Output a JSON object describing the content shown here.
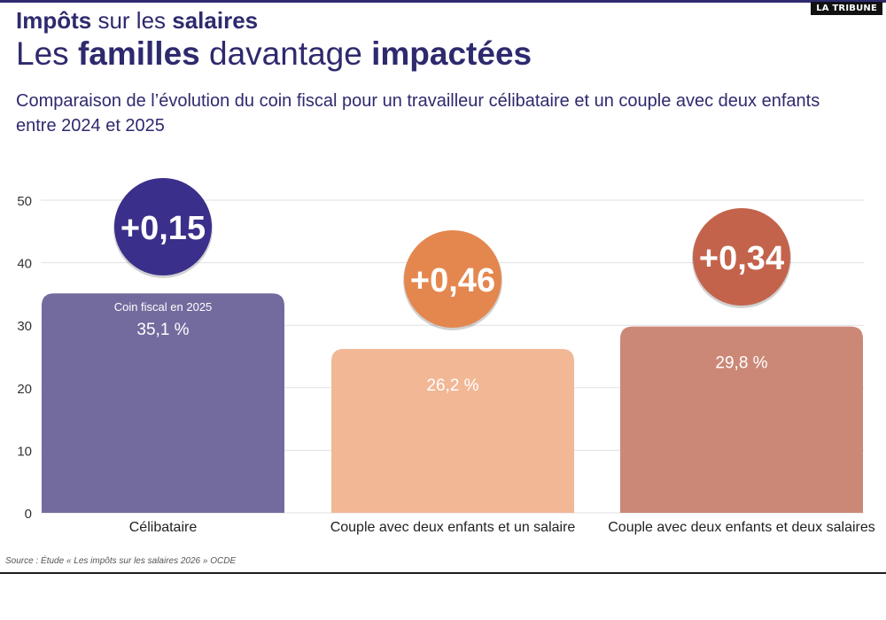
{
  "brand": "LA TRIBUNE",
  "title_line1": {
    "part1": "Impôts",
    "part2": " sur les ",
    "part3": "salaires"
  },
  "title_line2": {
    "part1": "Les ",
    "part2": "familles",
    "part3": " davantage ",
    "part4": "impactées"
  },
  "subtitle": "Comparaison de l’évolution du coin fiscal pour un travailleur célibataire et un couple avec deux enfants entre 2024 et 2025",
  "bar_annotation": "Coin fiscal en 2025",
  "source": "Source : Étude « Les impôts sur les salaires 2026 » OCDE",
  "colors": {
    "bars": [
      "#736b9e",
      "#f2b795",
      "#cb8877"
    ],
    "bubbles": [
      "#3a2f8a",
      "#e4874f",
      "#c4634c"
    ]
  },
  "chart_data": {
    "type": "bar",
    "categories": [
      "Célibataire",
      "Couple avec deux enfants et un salaire",
      "Couple avec deux enfants et deux salaires"
    ],
    "values": [
      35.1,
      26.2,
      29.8
    ],
    "value_labels": [
      "35,1 %",
      "26,2 %",
      "29,8 %"
    ],
    "changes": [
      "+0,15",
      "+0,46",
      "+0,34"
    ],
    "yticks": [
      0,
      10,
      20,
      30,
      40,
      50
    ],
    "ylim": [
      0,
      50
    ],
    "grid": true
  }
}
